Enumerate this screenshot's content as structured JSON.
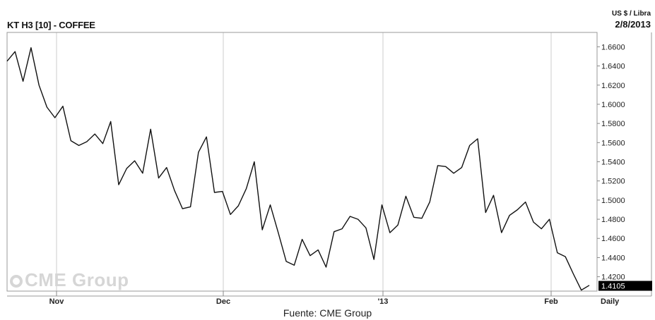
{
  "header": {
    "title": "KT H3 [10] - COFFEE",
    "unit": "US $ / Libra",
    "date": "2/8/2013"
  },
  "watermark": "CME Group",
  "source": "Fuente: CME Group",
  "colors": {
    "line": "#111111",
    "grid": "#cccccc",
    "last_label_bg": "#000000"
  },
  "chart_data": {
    "type": "line",
    "title": "KT H3 [10] - COFFEE",
    "ylabel": "US $ / Libra",
    "ylim": [
      1.405,
      1.675
    ],
    "yticks": [
      "1.6600",
      "1.6400",
      "1.6200",
      "1.6000",
      "1.5800",
      "1.5600",
      "1.5400",
      "1.5200",
      "1.5000",
      "1.4800",
      "1.4600",
      "1.4400",
      "1.4200"
    ],
    "xticks": [
      "Nov",
      "Dec",
      "'13",
      "Feb",
      "Daily"
    ],
    "last_value": "1.4105",
    "grid": true,
    "values": [
      1.645,
      1.655,
      1.624,
      1.659,
      1.62,
      1.597,
      1.586,
      1.598,
      1.562,
      1.557,
      1.561,
      1.569,
      1.559,
      1.582,
      1.516,
      1.533,
      1.541,
      1.528,
      1.574,
      1.523,
      1.534,
      1.51,
      1.491,
      1.493,
      1.55,
      1.566,
      1.508,
      1.509,
      1.485,
      1.494,
      1.512,
      1.54,
      1.469,
      1.495,
      1.466,
      1.436,
      1.432,
      1.459,
      1.442,
      1.448,
      1.43,
      1.467,
      1.47,
      1.483,
      1.48,
      1.471,
      1.438,
      1.495,
      1.466,
      1.474,
      1.504,
      1.482,
      1.481,
      1.498,
      1.536,
      1.535,
      1.528,
      1.534,
      1.557,
      1.564,
      1.487,
      1.505,
      1.466,
      1.484,
      1.49,
      1.498,
      1.477,
      1.47,
      1.48,
      1.445,
      1.441,
      1.423,
      1.406,
      1.411
    ]
  }
}
